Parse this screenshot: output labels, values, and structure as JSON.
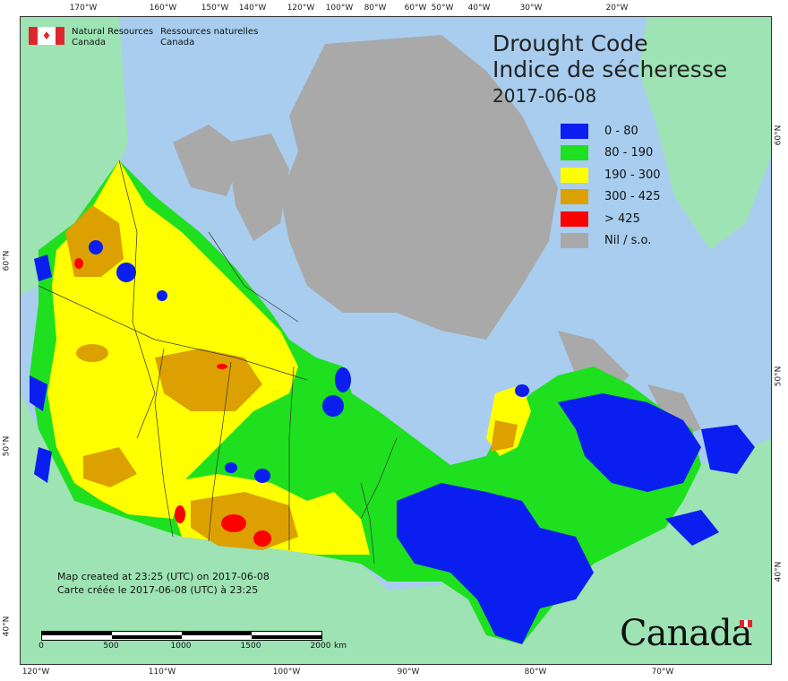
{
  "title": {
    "en": "Drought Code",
    "fr": "Indice de sécheresse",
    "date": "2017-06-08"
  },
  "department": {
    "en_line1": "Natural Resources",
    "en_line2": "Canada",
    "fr_line1": "Ressources naturelles",
    "fr_line2": "Canada"
  },
  "legend": [
    {
      "label": "0 - 80",
      "color": "#0a1ef0"
    },
    {
      "label": "80 - 190",
      "color": "#1ee01e"
    },
    {
      "label": "190 - 300",
      "color": "#ffff00"
    },
    {
      "label": "300 - 425",
      "color": "#dca000"
    },
    {
      "label": "> 425",
      "color": "#ff0000"
    },
    {
      "label": "Nil / s.o.",
      "color": "#a9a9a9"
    }
  ],
  "credits": {
    "en": "Map created at 23:25 (UTC) on 2017-06-08",
    "fr": "Carte créée le 2017-06-08 (UTC) à 23:25"
  },
  "scale": {
    "labels": [
      "0",
      "500",
      "1000",
      "1500",
      "2000"
    ],
    "unit": "km"
  },
  "wordmark": "Canada",
  "graticule": {
    "top": [
      "170°W",
      "160°W",
      "150°W",
      "140°W",
      "120°W",
      "100°W",
      "80°W",
      "60°W",
      "50°W",
      "40°W",
      "30°W",
      "20°W"
    ],
    "bottom": [
      "120°W",
      "110°W",
      "100°W",
      "90°W",
      "80°W",
      "70°W"
    ],
    "left": [
      "60°N",
      "50°N",
      "40°N"
    ],
    "right": [
      "60°N",
      "50°N",
      "40°N"
    ]
  },
  "colors": {
    "ocean": "#a8cdee",
    "land_outside": "#9de3b4",
    "nil": "#a9a9a9",
    "flag_red": "#e0262d"
  }
}
